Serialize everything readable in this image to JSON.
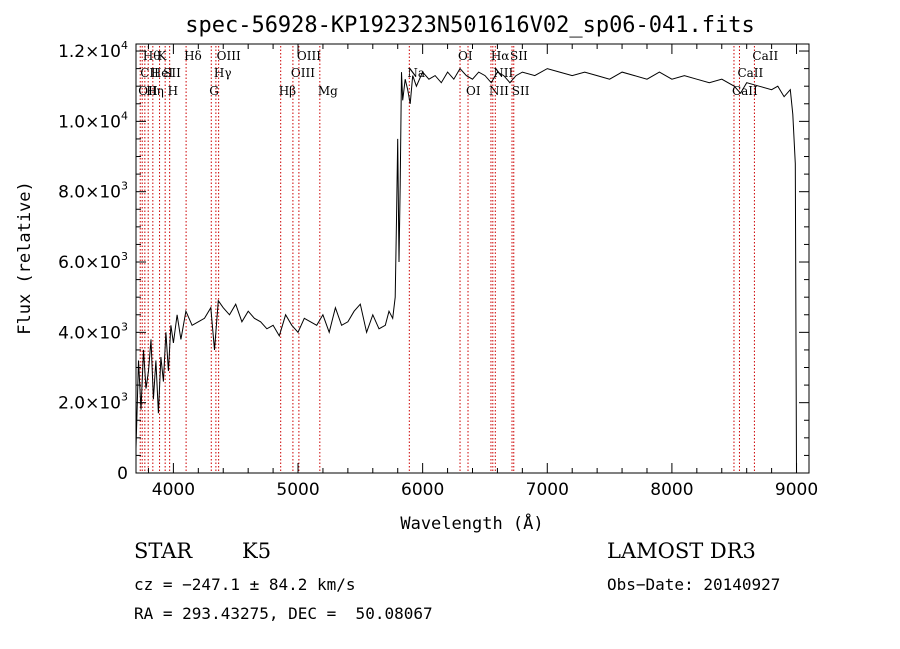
{
  "chart_data": {
    "type": "line",
    "title": "spec-56928-KP192323N501616V02_sp06-041.fits",
    "xlabel": "Wavelength (Å)",
    "ylabel": "Flux (relative)",
    "xlim": [
      3700,
      9100
    ],
    "ylim": [
      0,
      12200
    ],
    "grid": false,
    "x_ticks": [
      {
        "value": 4000,
        "label": "4000"
      },
      {
        "value": 5000,
        "label": "5000"
      },
      {
        "value": 6000,
        "label": "6000"
      },
      {
        "value": 7000,
        "label": "7000"
      },
      {
        "value": 8000,
        "label": "8000"
      },
      {
        "value": 9000,
        "label": "9000"
      }
    ],
    "y_ticks": [
      {
        "value": 0,
        "mant": "0",
        "exp": ""
      },
      {
        "value": 2000,
        "mant": "2.0×10",
        "exp": "3"
      },
      {
        "value": 4000,
        "mant": "4.0×10",
        "exp": "3"
      },
      {
        "value": 6000,
        "mant": "6.0×10",
        "exp": "3"
      },
      {
        "value": 8000,
        "mant": "8.0×10",
        "exp": "3"
      },
      {
        "value": 10000,
        "mant": "1.0×10",
        "exp": "4"
      },
      {
        "value": 12000,
        "mant": "1.2×10",
        "exp": "4"
      }
    ],
    "spectrum_line_color": "#000000",
    "line_marker_color": "#cc0000",
    "spectrum": {
      "x": [
        3700,
        3720,
        3740,
        3760,
        3780,
        3800,
        3820,
        3840,
        3860,
        3880,
        3900,
        3920,
        3940,
        3960,
        3980,
        4000,
        4030,
        4060,
        4100,
        4150,
        4200,
        4250,
        4300,
        4330,
        4360,
        4400,
        4450,
        4500,
        4550,
        4600,
        4650,
        4700,
        4750,
        4800,
        4850,
        4900,
        4950,
        5000,
        5050,
        5100,
        5150,
        5200,
        5250,
        5300,
        5350,
        5400,
        5450,
        5500,
        5550,
        5600,
        5650,
        5700,
        5730,
        5760,
        5780,
        5790,
        5800,
        5810,
        5820,
        5830,
        5840,
        5860,
        5880,
        5900,
        5920,
        5950,
        6000,
        6050,
        6100,
        6150,
        6200,
        6250,
        6300,
        6350,
        6400,
        6450,
        6500,
        6550,
        6600,
        6650,
        6700,
        6750,
        6800,
        6900,
        7000,
        7100,
        7200,
        7300,
        7400,
        7500,
        7600,
        7700,
        7800,
        7900,
        8000,
        8100,
        8200,
        8300,
        8400,
        8500,
        8550,
        8600,
        8700,
        8800,
        8850,
        8900,
        8950,
        8970,
        8990,
        9000
      ],
      "y": [
        700,
        3200,
        1800,
        3500,
        2400,
        2900,
        3800,
        2100,
        3200,
        1700,
        3300,
        2600,
        4000,
        2900,
        4200,
        3700,
        4500,
        3800,
        4600,
        4200,
        4300,
        4400,
        4700,
        3500,
        4900,
        4700,
        4500,
        4800,
        4300,
        4600,
        4400,
        4300,
        4100,
        4200,
        3900,
        4500,
        4200,
        4000,
        4400,
        4300,
        4200,
        4500,
        4000,
        4700,
        4200,
        4300,
        4600,
        4800,
        4000,
        4500,
        4100,
        4200,
        4600,
        4400,
        5000,
        7200,
        9500,
        6000,
        8200,
        11400,
        10600,
        11200,
        10900,
        10500,
        11300,
        11000,
        11400,
        11200,
        11300,
        11100,
        11400,
        11200,
        11500,
        11300,
        11200,
        11400,
        11300,
        11100,
        11400,
        11300,
        11100,
        11300,
        11400,
        11300,
        11500,
        11400,
        11300,
        11400,
        11300,
        11200,
        11400,
        11300,
        11200,
        11400,
        11200,
        11300,
        11200,
        11100,
        11200,
        11000,
        10800,
        11100,
        11000,
        10900,
        11000,
        10700,
        10900,
        10200,
        8800,
        0
      ]
    },
    "spectral_lines": [
      {
        "wavelength": 3734,
        "label": "OII",
        "row": 3
      },
      {
        "wavelength": 3750,
        "label": "CII",
        "row": 2
      },
      {
        "wavelength": 3771,
        "label": "Hθ",
        "row": 1
      },
      {
        "wavelength": 3798,
        "label": "Hη",
        "row": 3
      },
      {
        "wavelength": 3835,
        "label": "HeI",
        "row": 2
      },
      {
        "wavelength": 3889,
        "label": "K",
        "row": 1
      },
      {
        "wavelength": 3934,
        "label": "SII",
        "row": 2
      },
      {
        "wavelength": 3970,
        "label": "H",
        "row": 3
      },
      {
        "wavelength": 4102,
        "label": "Hδ",
        "row": 1
      },
      {
        "wavelength": 4304,
        "label": "G",
        "row": 3
      },
      {
        "wavelength": 4341,
        "label": "Hγ",
        "row": 2
      },
      {
        "wavelength": 4363,
        "label": "OIII",
        "row": 1
      },
      {
        "wavelength": 4861,
        "label": "Hβ",
        "row": 3
      },
      {
        "wavelength": 4959,
        "label": "OIII",
        "row": 2
      },
      {
        "wavelength": 5007,
        "label": "OIII",
        "row": 1
      },
      {
        "wavelength": 5175,
        "label": "Mg",
        "row": 3
      },
      {
        "wavelength": 5893,
        "label": "Na",
        "row": 2
      },
      {
        "wavelength": 6300,
        "label": "OI",
        "row": 1
      },
      {
        "wavelength": 6364,
        "label": "OI",
        "row": 3
      },
      {
        "wavelength": 6548,
        "label": "NII",
        "row": 3
      },
      {
        "wavelength": 6563,
        "label": "Hα",
        "row": 1
      },
      {
        "wavelength": 6583,
        "label": "NII",
        "row": 2
      },
      {
        "wavelength": 6717,
        "label": "SII",
        "row": 1
      },
      {
        "wavelength": 6731,
        "label": "SII",
        "row": 3
      },
      {
        "wavelength": 8498,
        "label": "CaII",
        "row": 3
      },
      {
        "wavelength": 8542,
        "label": "CaII",
        "row": 2
      },
      {
        "wavelength": 8662,
        "label": "CaII",
        "row": 1
      }
    ]
  },
  "info": {
    "object_class": "STAR",
    "subclass": "K5",
    "survey": "LAMOST DR3",
    "cz": "cz = −247.1 ± 84.2 km/s",
    "obs_date": "Obs−Date: 20140927",
    "coords": "RA = 293.43275, DEC =  50.08067"
  }
}
